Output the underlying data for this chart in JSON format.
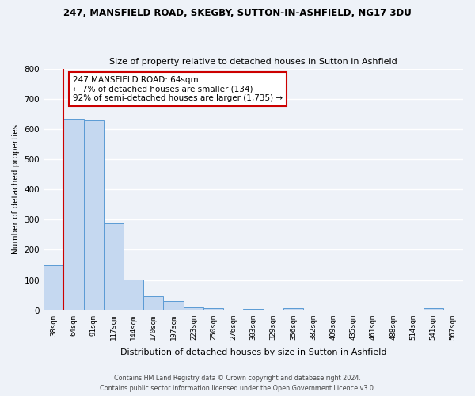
{
  "title1": "247, MANSFIELD ROAD, SKEGBY, SUTTON-IN-ASHFIELD, NG17 3DU",
  "title2": "Size of property relative to detached houses in Sutton in Ashfield",
  "xlabel": "Distribution of detached houses by size in Sutton in Ashfield",
  "ylabel": "Number of detached properties",
  "categories": [
    "38sqm",
    "64sqm",
    "91sqm",
    "117sqm",
    "144sqm",
    "170sqm",
    "197sqm",
    "223sqm",
    "250sqm",
    "276sqm",
    "303sqm",
    "329sqm",
    "356sqm",
    "382sqm",
    "409sqm",
    "435sqm",
    "461sqm",
    "488sqm",
    "514sqm",
    "541sqm",
    "567sqm"
  ],
  "values": [
    148,
    635,
    628,
    288,
    101,
    46,
    30,
    10,
    8,
    0,
    5,
    0,
    6,
    0,
    0,
    0,
    0,
    0,
    0,
    7,
    0
  ],
  "bar_color": "#c5d8f0",
  "bar_edge_color": "#5b9bd5",
  "ylim": [
    0,
    800
  ],
  "yticks": [
    0,
    100,
    200,
    300,
    400,
    500,
    600,
    700,
    800
  ],
  "annotation_title": "247 MANSFIELD ROAD: 64sqm",
  "annotation_line1": "← 7% of detached houses are smaller (134)",
  "annotation_line2": "92% of semi-detached houses are larger (1,735) →",
  "annotation_box_color": "#ffffff",
  "annotation_box_edge_color": "#cc0000",
  "property_line_color": "#cc0000",
  "footer1": "Contains HM Land Registry data © Crown copyright and database right 2024.",
  "footer2": "Contains public sector information licensed under the Open Government Licence v3.0.",
  "background_color": "#eef2f8",
  "grid_color": "#ffffff"
}
